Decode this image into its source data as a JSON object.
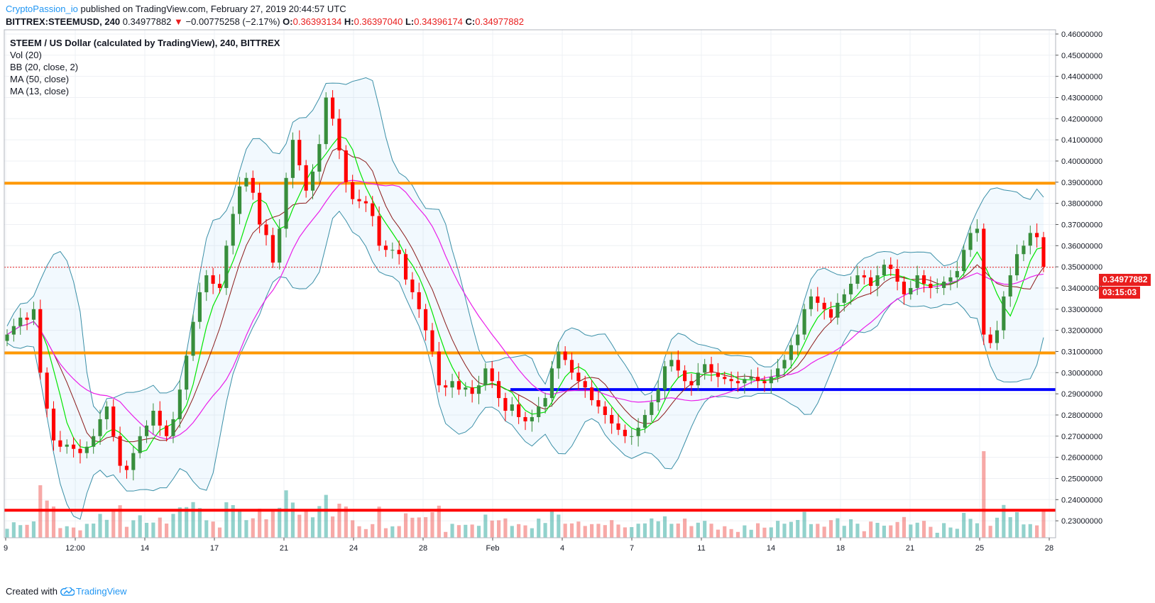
{
  "header": {
    "author": "CryptoPassion_io",
    "published_text": "published on TradingView.com, February 27, 2019 20:44:57 UTC",
    "symbol": "BITTREX:STEEMUSD, 240",
    "last": "0.34977882",
    "change_arrow": "▼",
    "change": "−0.00775258 (−2.17%)",
    "open_label": "O:",
    "open": "0.36393134",
    "high_label": "H:",
    "high": "0.36397040",
    "low_label": "L:",
    "low": "0.34396174",
    "close_label": "C:",
    "close": "0.34977882"
  },
  "legend": {
    "title": "STEEM / US Dollar (calculated by TradingView), 240, BITTREX",
    "vol": "Vol (20)",
    "bb": "BB (20, close, 2)",
    "ma50": "MA (50, close)",
    "ma13": "MA (13, close)"
  },
  "price_tag": {
    "price": "0.34977882",
    "countdown": "03:15:03"
  },
  "footer": {
    "created_with": "Created with",
    "brand": "TradingView"
  },
  "colors": {
    "up": "#388e3c",
    "down": "#ff0000",
    "bb": "#3a8fa7",
    "ma13": "#00e600",
    "ma50": "#e91ee9",
    "ma_mid": "#8b1a1a",
    "orange_line": "#ff9800",
    "blue_line": "#0000ff",
    "red_line": "#ff0000"
  },
  "chart_data": {
    "type": "candlestick",
    "ylim": [
      0.222,
      0.462
    ],
    "y_ticks": [
      "0.46000000",
      "0.45000000",
      "0.44000000",
      "0.43000000",
      "0.42000000",
      "0.41000000",
      "0.40000000",
      "0.39000000",
      "0.38000000",
      "0.37000000",
      "0.36000000",
      "0.35000000",
      "0.34000000",
      "0.33000000",
      "0.32000000",
      "0.31000000",
      "0.30000000",
      "0.29000000",
      "0.28000000",
      "0.27000000",
      "0.26000000",
      "0.25000000",
      "0.24000000",
      "0.23000000"
    ],
    "x_ticks": [
      "9",
      "12:00",
      "14",
      "17",
      "21",
      "24",
      "28",
      "Feb",
      "4",
      "7",
      "11",
      "14",
      "18",
      "21",
      "25",
      "28"
    ],
    "horizontal_lines": [
      {
        "price": 0.3895,
        "color": "orange"
      },
      {
        "price": 0.3093,
        "color": "orange"
      },
      {
        "price": 0.292,
        "color": "blue",
        "from_x_tick": "Feb"
      },
      {
        "price": 0.235,
        "color": "red"
      }
    ],
    "close_series": [
      0.318,
      0.322,
      0.326,
      0.325,
      0.33,
      0.3,
      0.283,
      0.268,
      0.265,
      0.266,
      0.264,
      0.262,
      0.265,
      0.27,
      0.278,
      0.284,
      0.27,
      0.256,
      0.254,
      0.262,
      0.27,
      0.275,
      0.282,
      0.275,
      0.27,
      0.278,
      0.292,
      0.308,
      0.324,
      0.338,
      0.346,
      0.342,
      0.34,
      0.36,
      0.375,
      0.388,
      0.392,
      0.385,
      0.37,
      0.365,
      0.352,
      0.368,
      0.392,
      0.41,
      0.398,
      0.386,
      0.395,
      0.408,
      0.43,
      0.42,
      0.405,
      0.39,
      0.382,
      0.381,
      0.38,
      0.374,
      0.36,
      0.358,
      0.358,
      0.356,
      0.344,
      0.338,
      0.33,
      0.32,
      0.31,
      0.294,
      0.293,
      0.296,
      0.292,
      0.293,
      0.29,
      0.294,
      0.302,
      0.296,
      0.288,
      0.282,
      0.285,
      0.279,
      0.277,
      0.279,
      0.284,
      0.288,
      0.302,
      0.31,
      0.306,
      0.3,
      0.296,
      0.293,
      0.287,
      0.284,
      0.28,
      0.276,
      0.273,
      0.27,
      0.27,
      0.274,
      0.28,
      0.286,
      0.292,
      0.303,
      0.306,
      0.301,
      0.296,
      0.294,
      0.3,
      0.304,
      0.3,
      0.298,
      0.297,
      0.296,
      0.295,
      0.297,
      0.298,
      0.296,
      0.295,
      0.298,
      0.302,
      0.306,
      0.313,
      0.318,
      0.33,
      0.336,
      0.333,
      0.33,
      0.326,
      0.333,
      0.337,
      0.342,
      0.346,
      0.345,
      0.341,
      0.346,
      0.351,
      0.349,
      0.343,
      0.337,
      0.34,
      0.346,
      0.342,
      0.34,
      0.34,
      0.343,
      0.345,
      0.348,
      0.358,
      0.366,
      0.368,
      0.318,
      0.314,
      0.32,
      0.336,
      0.346,
      0.356,
      0.36,
      0.366,
      0.364,
      0.35
    ],
    "volume_note": "volume bars shown at bottom, colored by candle direction"
  }
}
